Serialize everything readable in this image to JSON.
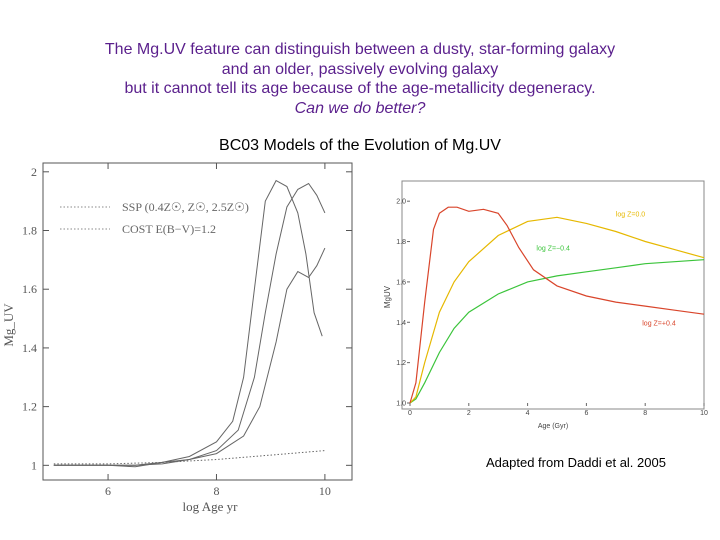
{
  "headline": {
    "line1": "The Mg.UV feature can distinguish between a dusty, star-forming galaxy",
    "line2": "and an older, passively evolving galaxy",
    "line3": "but it cannot tell its age because of the age-metallicity degeneracy.",
    "line4": "Can we do better?"
  },
  "subtitle": "BC03 Models of the Evolution of Mg.UV",
  "caption": "Adapted from Daddi et al. 2005",
  "chart_data": [
    {
      "type": "line",
      "xlabel": "log Age yr",
      "ylabel": "Mg_UV",
      "xlim": [
        4.8,
        10.5
      ],
      "ylim": [
        0.95,
        2.03
      ],
      "xticks": [
        6,
        8,
        10
      ],
      "yticks": [
        1,
        1.2,
        1.4,
        1.6,
        1.8,
        2
      ],
      "legend": [
        {
          "text": "SSP (0.4Z☉, Z☉, 2.5Z☉)",
          "style": "dotted"
        },
        {
          "text": "COST E(B−V)=1.2",
          "style": "dotted"
        }
      ],
      "series": [
        {
          "style": "solid",
          "points": [
            [
              5.0,
              1.0
            ],
            [
              6.0,
              1.0
            ],
            [
              6.5,
              0.995
            ],
            [
              7.0,
              1.01
            ],
            [
              7.5,
              1.03
            ],
            [
              8.0,
              1.08
            ],
            [
              8.3,
              1.15
            ],
            [
              8.5,
              1.3
            ],
            [
              8.7,
              1.6
            ],
            [
              8.9,
              1.9
            ],
            [
              9.1,
              1.97
            ],
            [
              9.3,
              1.95
            ],
            [
              9.5,
              1.86
            ],
            [
              9.65,
              1.72
            ],
            [
              9.8,
              1.52
            ],
            [
              9.95,
              1.44
            ]
          ]
        },
        {
          "style": "solid",
          "points": [
            [
              5.0,
              1.0
            ],
            [
              6.0,
              1.0
            ],
            [
              6.5,
              1.0
            ],
            [
              7.0,
              1.01
            ],
            [
              7.5,
              1.02
            ],
            [
              8.0,
              1.05
            ],
            [
              8.4,
              1.12
            ],
            [
              8.7,
              1.3
            ],
            [
              8.9,
              1.52
            ],
            [
              9.1,
              1.72
            ],
            [
              9.3,
              1.88
            ],
            [
              9.5,
              1.94
            ],
            [
              9.7,
              1.96
            ],
            [
              9.85,
              1.92
            ],
            [
              10.0,
              1.86
            ]
          ]
        },
        {
          "style": "solid",
          "points": [
            [
              5.0,
              1.0
            ],
            [
              6.0,
              1.0
            ],
            [
              6.5,
              1.0
            ],
            [
              7.0,
              1.005
            ],
            [
              7.5,
              1.02
            ],
            [
              8.0,
              1.04
            ],
            [
              8.5,
              1.1
            ],
            [
              8.8,
              1.2
            ],
            [
              9.1,
              1.42
            ],
            [
              9.3,
              1.6
            ],
            [
              9.5,
              1.66
            ],
            [
              9.7,
              1.64
            ],
            [
              9.85,
              1.68
            ],
            [
              10.0,
              1.74
            ]
          ]
        },
        {
          "style": "dotted",
          "points": [
            [
              5.0,
              1.005
            ],
            [
              6.0,
              1.005
            ],
            [
              7.0,
              1.01
            ],
            [
              8.0,
              1.02
            ],
            [
              9.0,
              1.035
            ],
            [
              10.0,
              1.05
            ]
          ]
        }
      ]
    },
    {
      "type": "line",
      "xlabel": "Age (Gyr)",
      "ylabel": "MgUV",
      "xlim": [
        0,
        10
      ],
      "ylim": [
        1.0,
        2.1
      ],
      "xticks": [
        0,
        2,
        4,
        6,
        8,
        10
      ],
      "yticks": [
        1.0,
        1.2,
        1.4,
        1.6,
        1.8,
        2.0
      ],
      "series": [
        {
          "name": "log Z=−0.4",
          "color": "#3bc43b",
          "points": [
            [
              0,
              1.0
            ],
            [
              0.2,
              1.02
            ],
            [
              0.5,
              1.1
            ],
            [
              1.0,
              1.25
            ],
            [
              1.5,
              1.37
            ],
            [
              2.0,
              1.45
            ],
            [
              3.0,
              1.54
            ],
            [
              4.0,
              1.6
            ],
            [
              5.0,
              1.63
            ],
            [
              6.0,
              1.65
            ],
            [
              7.0,
              1.67
            ],
            [
              8.0,
              1.69
            ],
            [
              9.0,
              1.7
            ],
            [
              10.0,
              1.71
            ]
          ]
        },
        {
          "name": "log Z=0.0",
          "color": "#e6b800",
          "points": [
            [
              0,
              1.0
            ],
            [
              0.2,
              1.03
            ],
            [
              0.5,
              1.2
            ],
            [
              1.0,
              1.45
            ],
            [
              1.5,
              1.6
            ],
            [
              2.0,
              1.7
            ],
            [
              3.0,
              1.83
            ],
            [
              4.0,
              1.9
            ],
            [
              5.0,
              1.92
            ],
            [
              6.0,
              1.89
            ],
            [
              7.0,
              1.85
            ],
            [
              8.0,
              1.8
            ],
            [
              9.0,
              1.76
            ],
            [
              10.0,
              1.72
            ]
          ]
        },
        {
          "name": "log Z=+0.4",
          "color": "#d9452b",
          "points": [
            [
              0,
              1.0
            ],
            [
              0.2,
              1.1
            ],
            [
              0.5,
              1.5
            ],
            [
              0.8,
              1.86
            ],
            [
              1.0,
              1.94
            ],
            [
              1.3,
              1.97
            ],
            [
              1.6,
              1.97
            ],
            [
              2.0,
              1.95
            ],
            [
              2.5,
              1.96
            ],
            [
              3.0,
              1.94
            ],
            [
              3.3,
              1.88
            ],
            [
              3.7,
              1.77
            ],
            [
              4.2,
              1.66
            ],
            [
              5.0,
              1.58
            ],
            [
              6.0,
              1.53
            ],
            [
              7.0,
              1.5
            ],
            [
              8.0,
              1.48
            ],
            [
              9.0,
              1.46
            ],
            [
              10.0,
              1.44
            ]
          ]
        }
      ]
    }
  ]
}
